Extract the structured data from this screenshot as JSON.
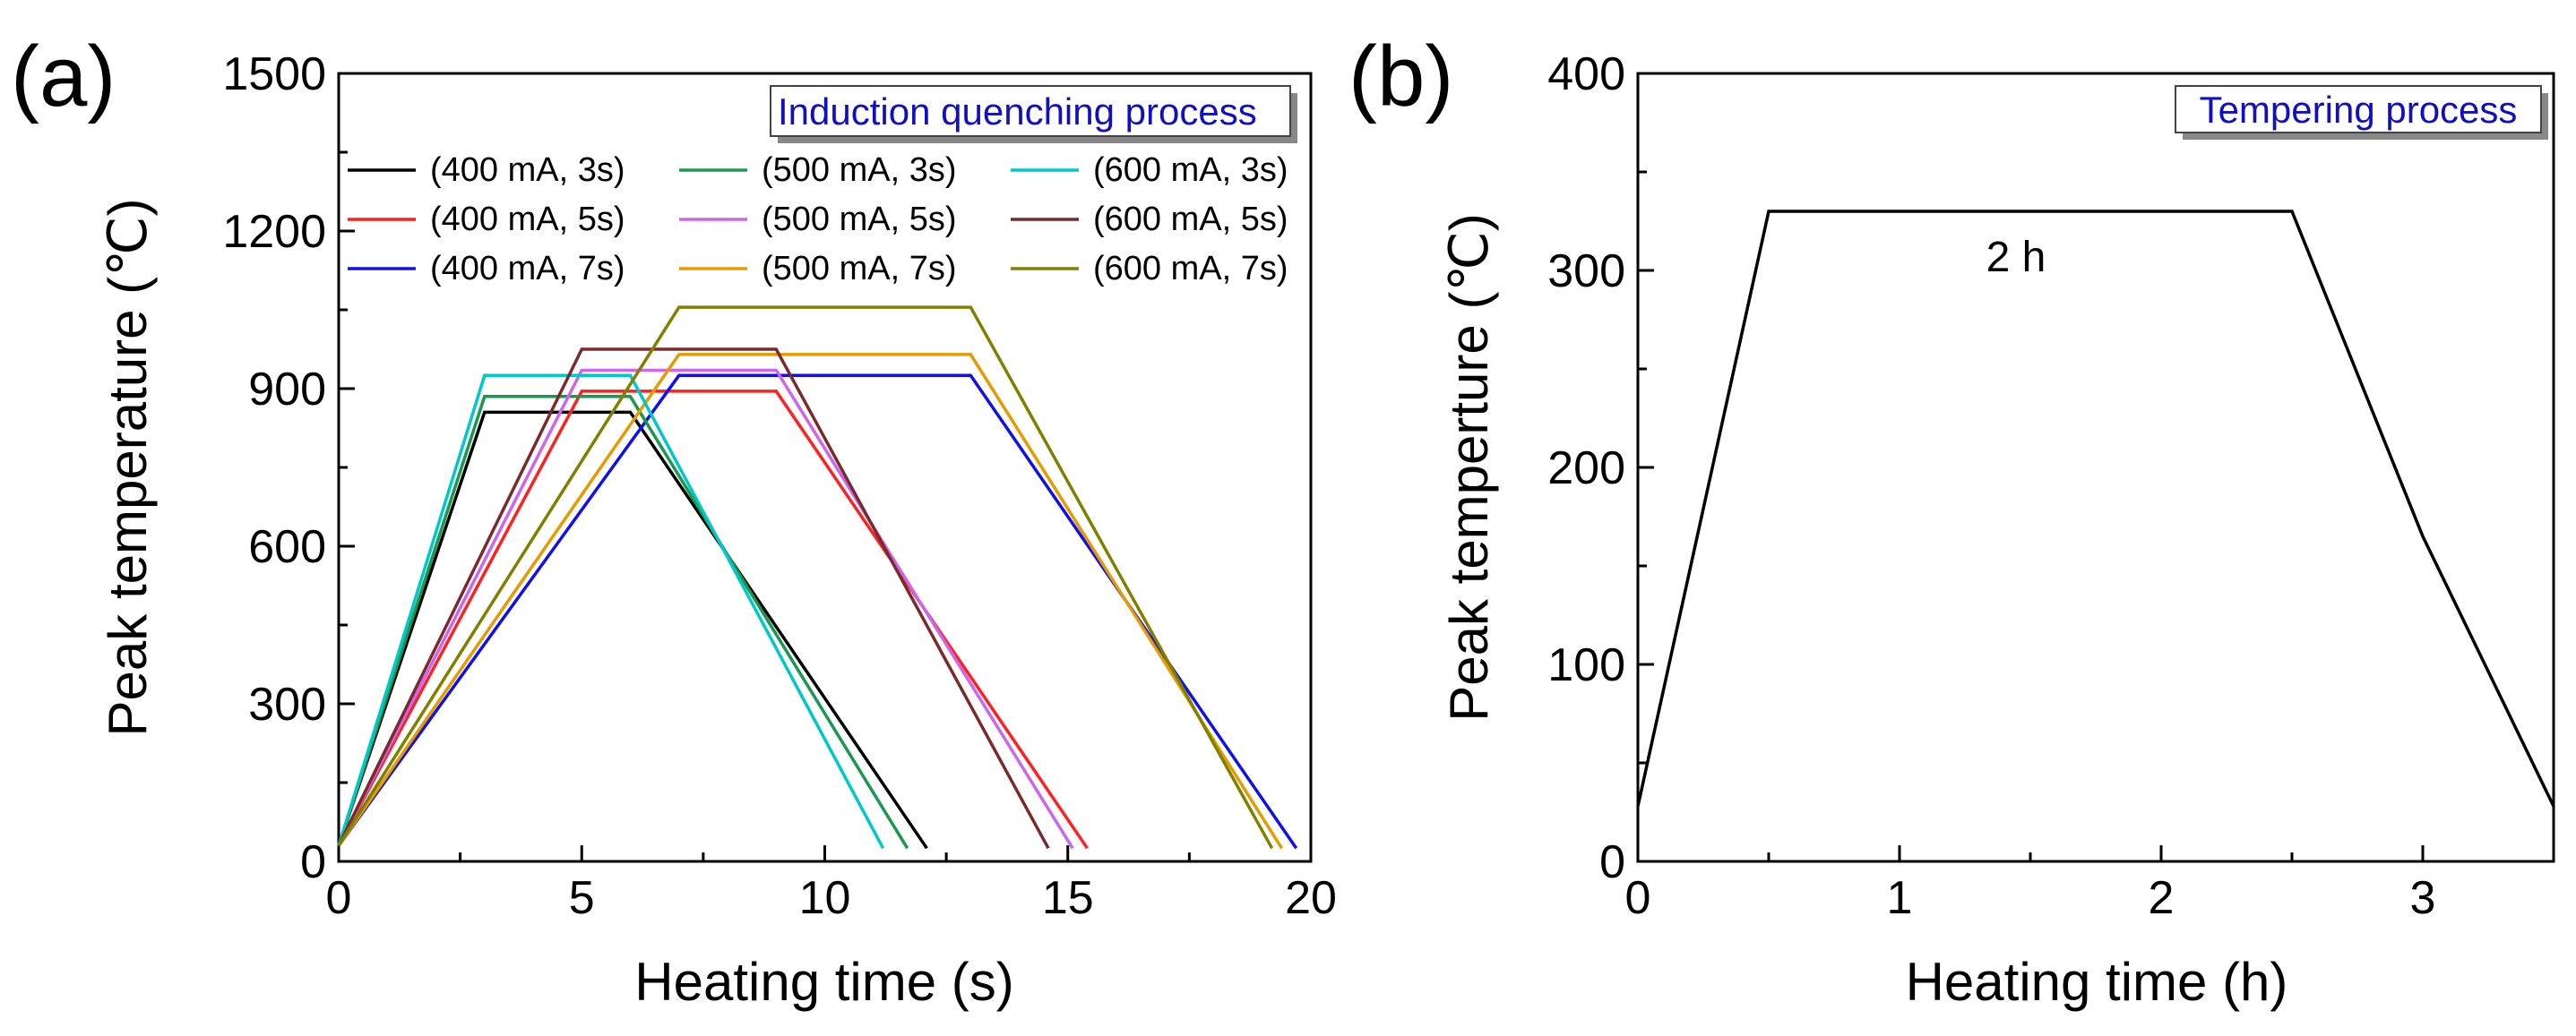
{
  "panels": {
    "a": {
      "label": "(a)"
    },
    "b": {
      "label": "(b)"
    }
  },
  "chart_data": [
    {
      "type": "line",
      "xlabel": "Heating time (s)",
      "ylabel": "Peak temperature (℃)",
      "xlim": [
        0,
        20
      ],
      "ylim": [
        0,
        1500
      ],
      "xticks": [
        0,
        5,
        10,
        15,
        20
      ],
      "yticks": [
        0,
        300,
        600,
        900,
        1200,
        1500
      ],
      "grid": false,
      "legend_position": "top",
      "annotation_box": "Induction quenching process",
      "series": [
        {
          "name": "(400 mA, 3s)",
          "color": "#000000",
          "x": [
            0,
            3,
            6,
            12.1
          ],
          "y": [
            30,
            855,
            855,
            25
          ]
        },
        {
          "name": "(400 mA, 5s)",
          "color": "#ff2020",
          "x": [
            0,
            5,
            9,
            15.4
          ],
          "y": [
            30,
            895,
            895,
            25
          ]
        },
        {
          "name": "(400 mA, 7s)",
          "color": "#1010ee",
          "x": [
            0,
            7,
            13,
            19.7
          ],
          "y": [
            30,
            925,
            925,
            25
          ]
        },
        {
          "name": "(500 mA, 3s)",
          "color": "#1a9850",
          "x": [
            0,
            3,
            6,
            11.7
          ],
          "y": [
            30,
            885,
            885,
            25
          ]
        },
        {
          "name": "(500 mA, 5s)",
          "color": "#cc66ee",
          "x": [
            0,
            5,
            9,
            15.1
          ],
          "y": [
            30,
            935,
            935,
            25
          ]
        },
        {
          "name": "(500 mA, 7s)",
          "color": "#e69b00",
          "x": [
            0,
            7,
            13,
            19.4
          ],
          "y": [
            30,
            965,
            965,
            25
          ]
        },
        {
          "name": "(600 mA, 3s)",
          "color": "#00c8c8",
          "x": [
            0,
            3,
            6,
            11.2
          ],
          "y": [
            30,
            925,
            925,
            25
          ]
        },
        {
          "name": "(600 mA, 5s)",
          "color": "#7a2a2a",
          "x": [
            0,
            5,
            9,
            14.6
          ],
          "y": [
            30,
            975,
            975,
            25
          ]
        },
        {
          "name": "(600 mA, 7s)",
          "color": "#808000",
          "x": [
            0,
            7,
            13,
            19.2
          ],
          "y": [
            30,
            1055,
            1055,
            25
          ]
        }
      ]
    },
    {
      "type": "line",
      "xlabel": "Heating time (h)",
      "ylabel": "Peak temperture (℃)",
      "xlim": [
        0,
        3.5
      ],
      "ylim": [
        0,
        400
      ],
      "xticks": [
        0,
        1,
        2,
        3
      ],
      "yticks": [
        0,
        100,
        200,
        300,
        400
      ],
      "grid": false,
      "annotation_box": "Tempering process",
      "annotation_text": "2 h",
      "series": [
        {
          "color": "#000000",
          "x": [
            0,
            0.5,
            2.5,
            3.0,
            3.5
          ],
          "y": [
            28,
            330,
            330,
            165,
            28
          ]
        }
      ]
    }
  ]
}
